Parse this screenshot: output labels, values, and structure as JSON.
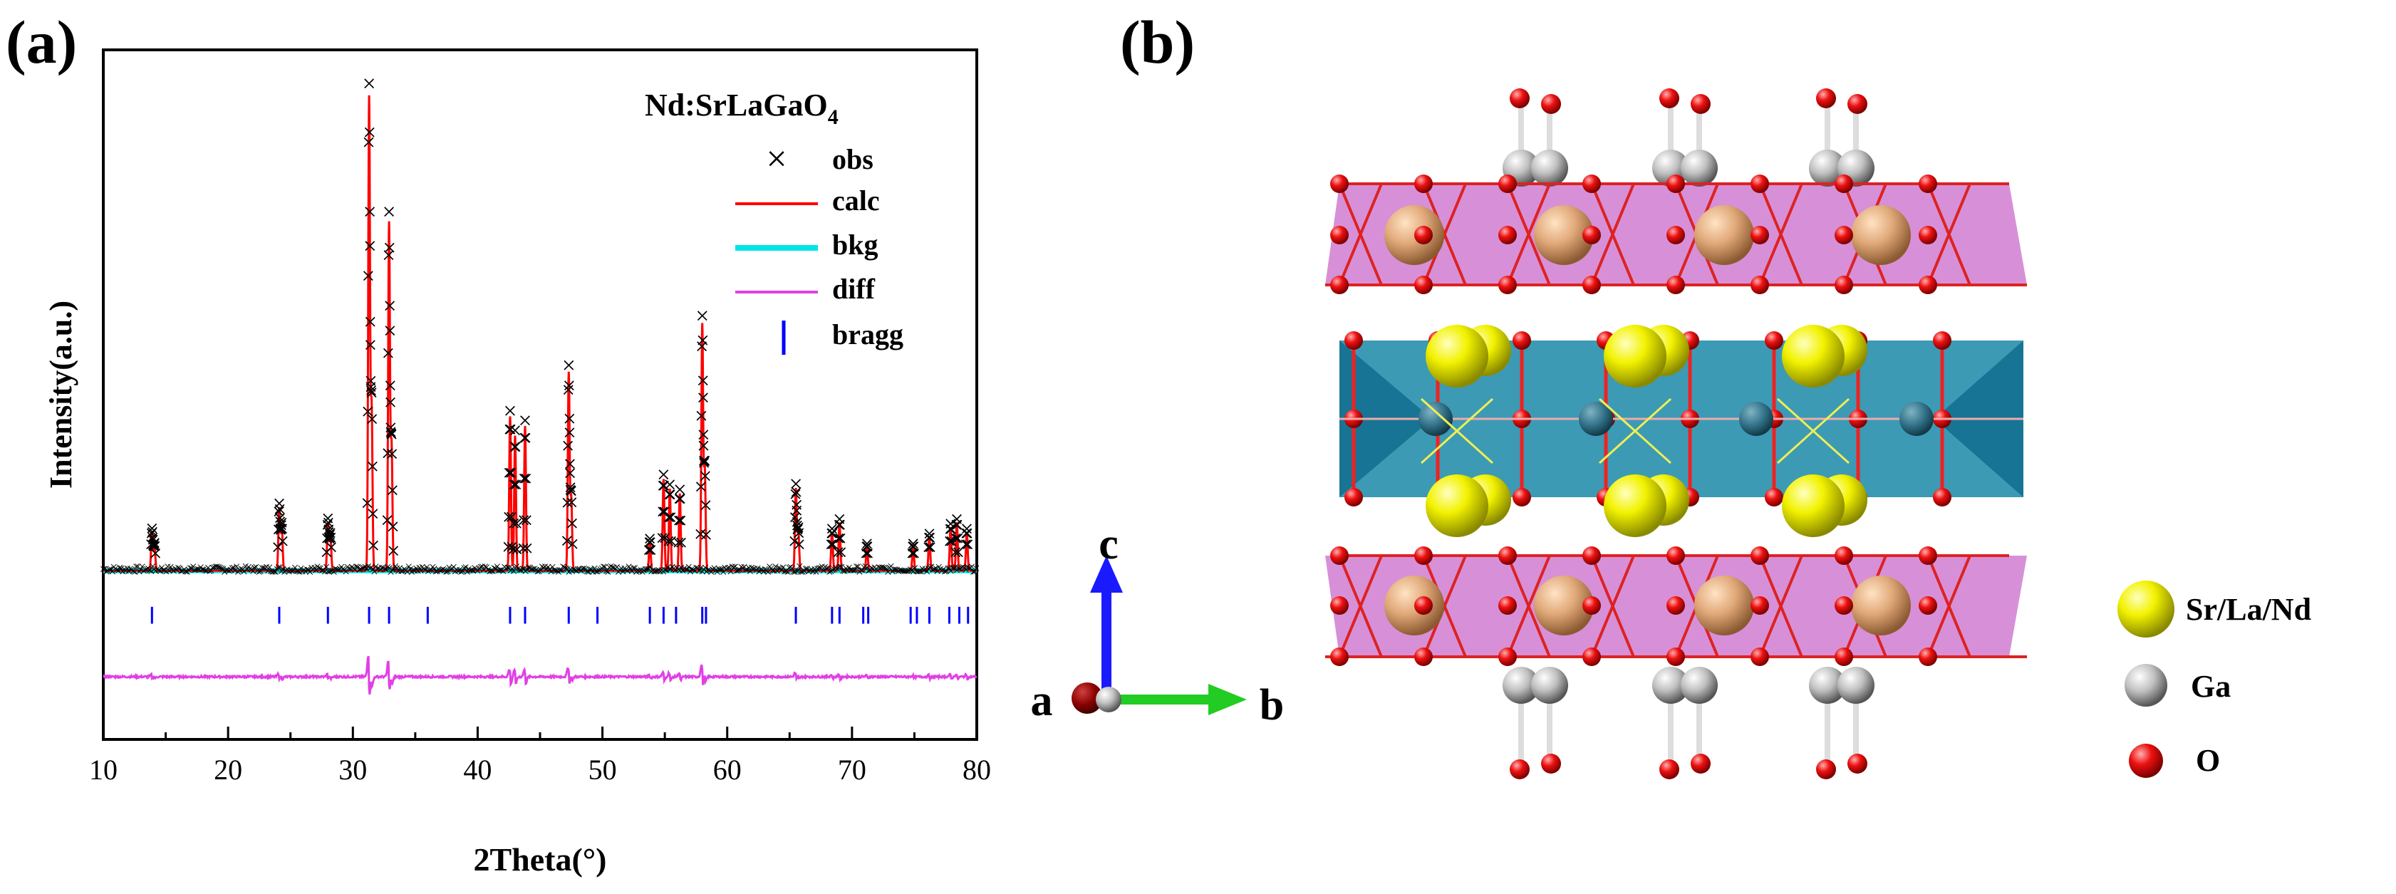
{
  "panel_a": {
    "label": "(a)",
    "chart_data": {
      "type": "line",
      "title": "Nd:SrLaGaO",
      "title_subscript": "4",
      "xlabel": "2Theta(°)",
      "ylabel": "Intensity(a.u.)",
      "xlim": [
        10,
        80
      ],
      "xticks": [
        10,
        20,
        30,
        40,
        50,
        60,
        70,
        80
      ],
      "xtick_labels": [
        "10",
        "20",
        "30",
        "40",
        "50",
        "60",
        "70",
        "80"
      ],
      "ylim": [
        -0.35,
        1.08
      ],
      "yticks_shown": false,
      "background": 0.0,
      "peaks": [
        {
          "x": 13.9,
          "h": 0.08
        },
        {
          "x": 14.1,
          "h": 0.05
        },
        {
          "x": 24.1,
          "h": 0.13
        },
        {
          "x": 24.3,
          "h": 0.09
        },
        {
          "x": 28.0,
          "h": 0.1
        },
        {
          "x": 28.2,
          "h": 0.07
        },
        {
          "x": 31.3,
          "h": 0.98
        },
        {
          "x": 31.5,
          "h": 0.34
        },
        {
          "x": 32.9,
          "h": 0.72
        },
        {
          "x": 33.1,
          "h": 0.26
        },
        {
          "x": 42.6,
          "h": 0.32
        },
        {
          "x": 43.0,
          "h": 0.28
        },
        {
          "x": 43.8,
          "h": 0.3
        },
        {
          "x": 47.3,
          "h": 0.41
        },
        {
          "x": 47.5,
          "h": 0.15
        },
        {
          "x": 53.8,
          "h": 0.06
        },
        {
          "x": 54.9,
          "h": 0.19
        },
        {
          "x": 55.4,
          "h": 0.17
        },
        {
          "x": 56.2,
          "h": 0.16
        },
        {
          "x": 58.0,
          "h": 0.51
        },
        {
          "x": 58.2,
          "h": 0.21
        },
        {
          "x": 65.5,
          "h": 0.17
        },
        {
          "x": 65.7,
          "h": 0.08
        },
        {
          "x": 68.4,
          "h": 0.08
        },
        {
          "x": 69.0,
          "h": 0.1
        },
        {
          "x": 71.2,
          "h": 0.05
        },
        {
          "x": 74.9,
          "h": 0.05
        },
        {
          "x": 76.2,
          "h": 0.07
        },
        {
          "x": 77.9,
          "h": 0.09
        },
        {
          "x": 78.4,
          "h": 0.1
        },
        {
          "x": 79.2,
          "h": 0.08
        }
      ],
      "bragg_positions": [
        13.9,
        24.1,
        28.0,
        31.3,
        32.9,
        36.0,
        42.6,
        43.8,
        47.3,
        49.6,
        53.8,
        54.9,
        55.9,
        58.0,
        58.3,
        65.5,
        68.4,
        69.0,
        70.9,
        71.3,
        74.7,
        75.2,
        76.2,
        77.8,
        78.6,
        79.3
      ],
      "series": [
        {
          "name": "obs",
          "color": "#000000",
          "marker": "×"
        },
        {
          "name": "calc",
          "color": "#ff0000"
        },
        {
          "name": "bkg",
          "color": "#00e5e5"
        },
        {
          "name": "diff",
          "color": "#e040e6"
        },
        {
          "name": "bragg",
          "color": "#0000ff",
          "marker": "|"
        }
      ]
    }
  },
  "panel_b": {
    "label": "(b)",
    "axes": {
      "c": "c",
      "a": "a",
      "b": "b"
    },
    "legend": [
      {
        "name": "Sr/La/Nd",
        "color": "#f0f000"
      },
      {
        "name": "Ga",
        "color": "#b8b8b8"
      },
      {
        "name": "O",
        "color": "#ee1111"
      }
    ]
  }
}
